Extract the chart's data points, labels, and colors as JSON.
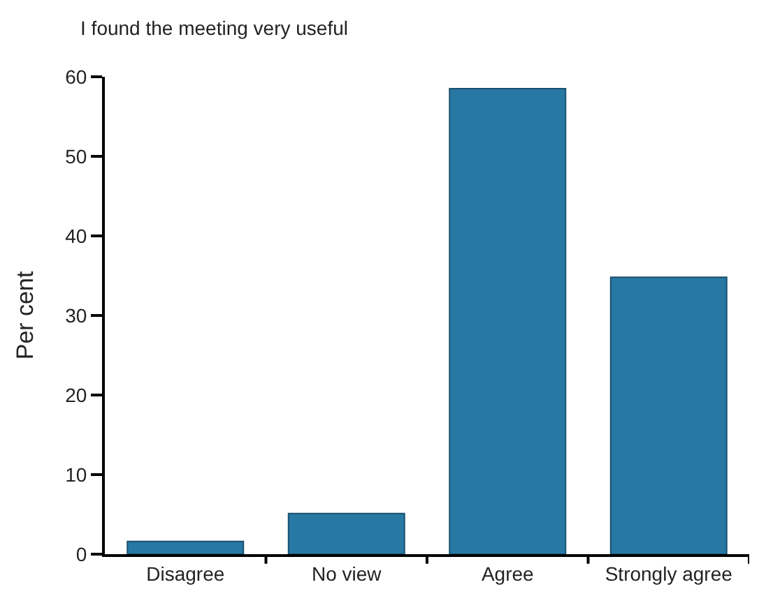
{
  "chart_data": {
    "type": "bar",
    "title": "I found the meeting very useful",
    "ylabel": "Per cent",
    "categories": [
      "Disagree",
      "No view",
      "Agree",
      "Strongly agree"
    ],
    "values": [
      1.6,
      5.1,
      58.5,
      34.8
    ],
    "color": "#2878a4",
    "ylim": [
      0,
      60
    ],
    "yticks": [
      0,
      10,
      20,
      30,
      40,
      50,
      60
    ]
  }
}
